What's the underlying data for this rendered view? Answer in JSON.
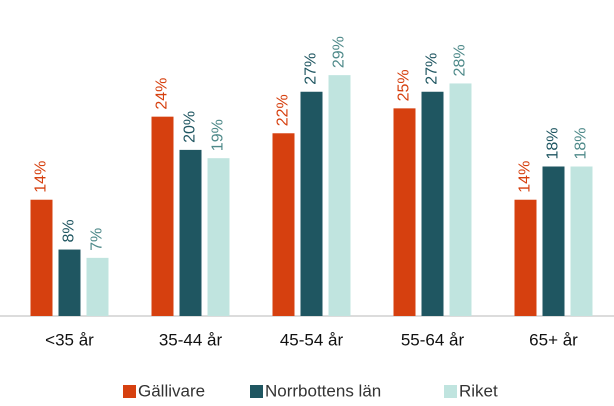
{
  "chart_data": {
    "type": "bar",
    "categories": [
      "<35 år",
      "35-44 år",
      "45-54 år",
      "55-64 år",
      "65+ år"
    ],
    "series": [
      {
        "name": "Gällivare",
        "color": "#d6400f",
        "values": [
          14,
          24,
          22,
          25,
          14
        ],
        "value_labels": [
          "14%",
          "24%",
          "22%",
          "25%",
          "14%"
        ]
      },
      {
        "name": "Norrbottens län",
        "color": "#1f5661",
        "values": [
          8,
          20,
          27,
          27,
          18
        ],
        "value_labels": [
          "8%",
          "20%",
          "27%",
          "27%",
          "18%"
        ]
      },
      {
        "name": "Riket",
        "color": "#c0e4df",
        "values": [
          7,
          19,
          29,
          28,
          18
        ],
        "value_labels": [
          "7%",
          "19%",
          "29%",
          "28%",
          "18%"
        ]
      }
    ],
    "ylim": [
      0,
      36
    ]
  }
}
